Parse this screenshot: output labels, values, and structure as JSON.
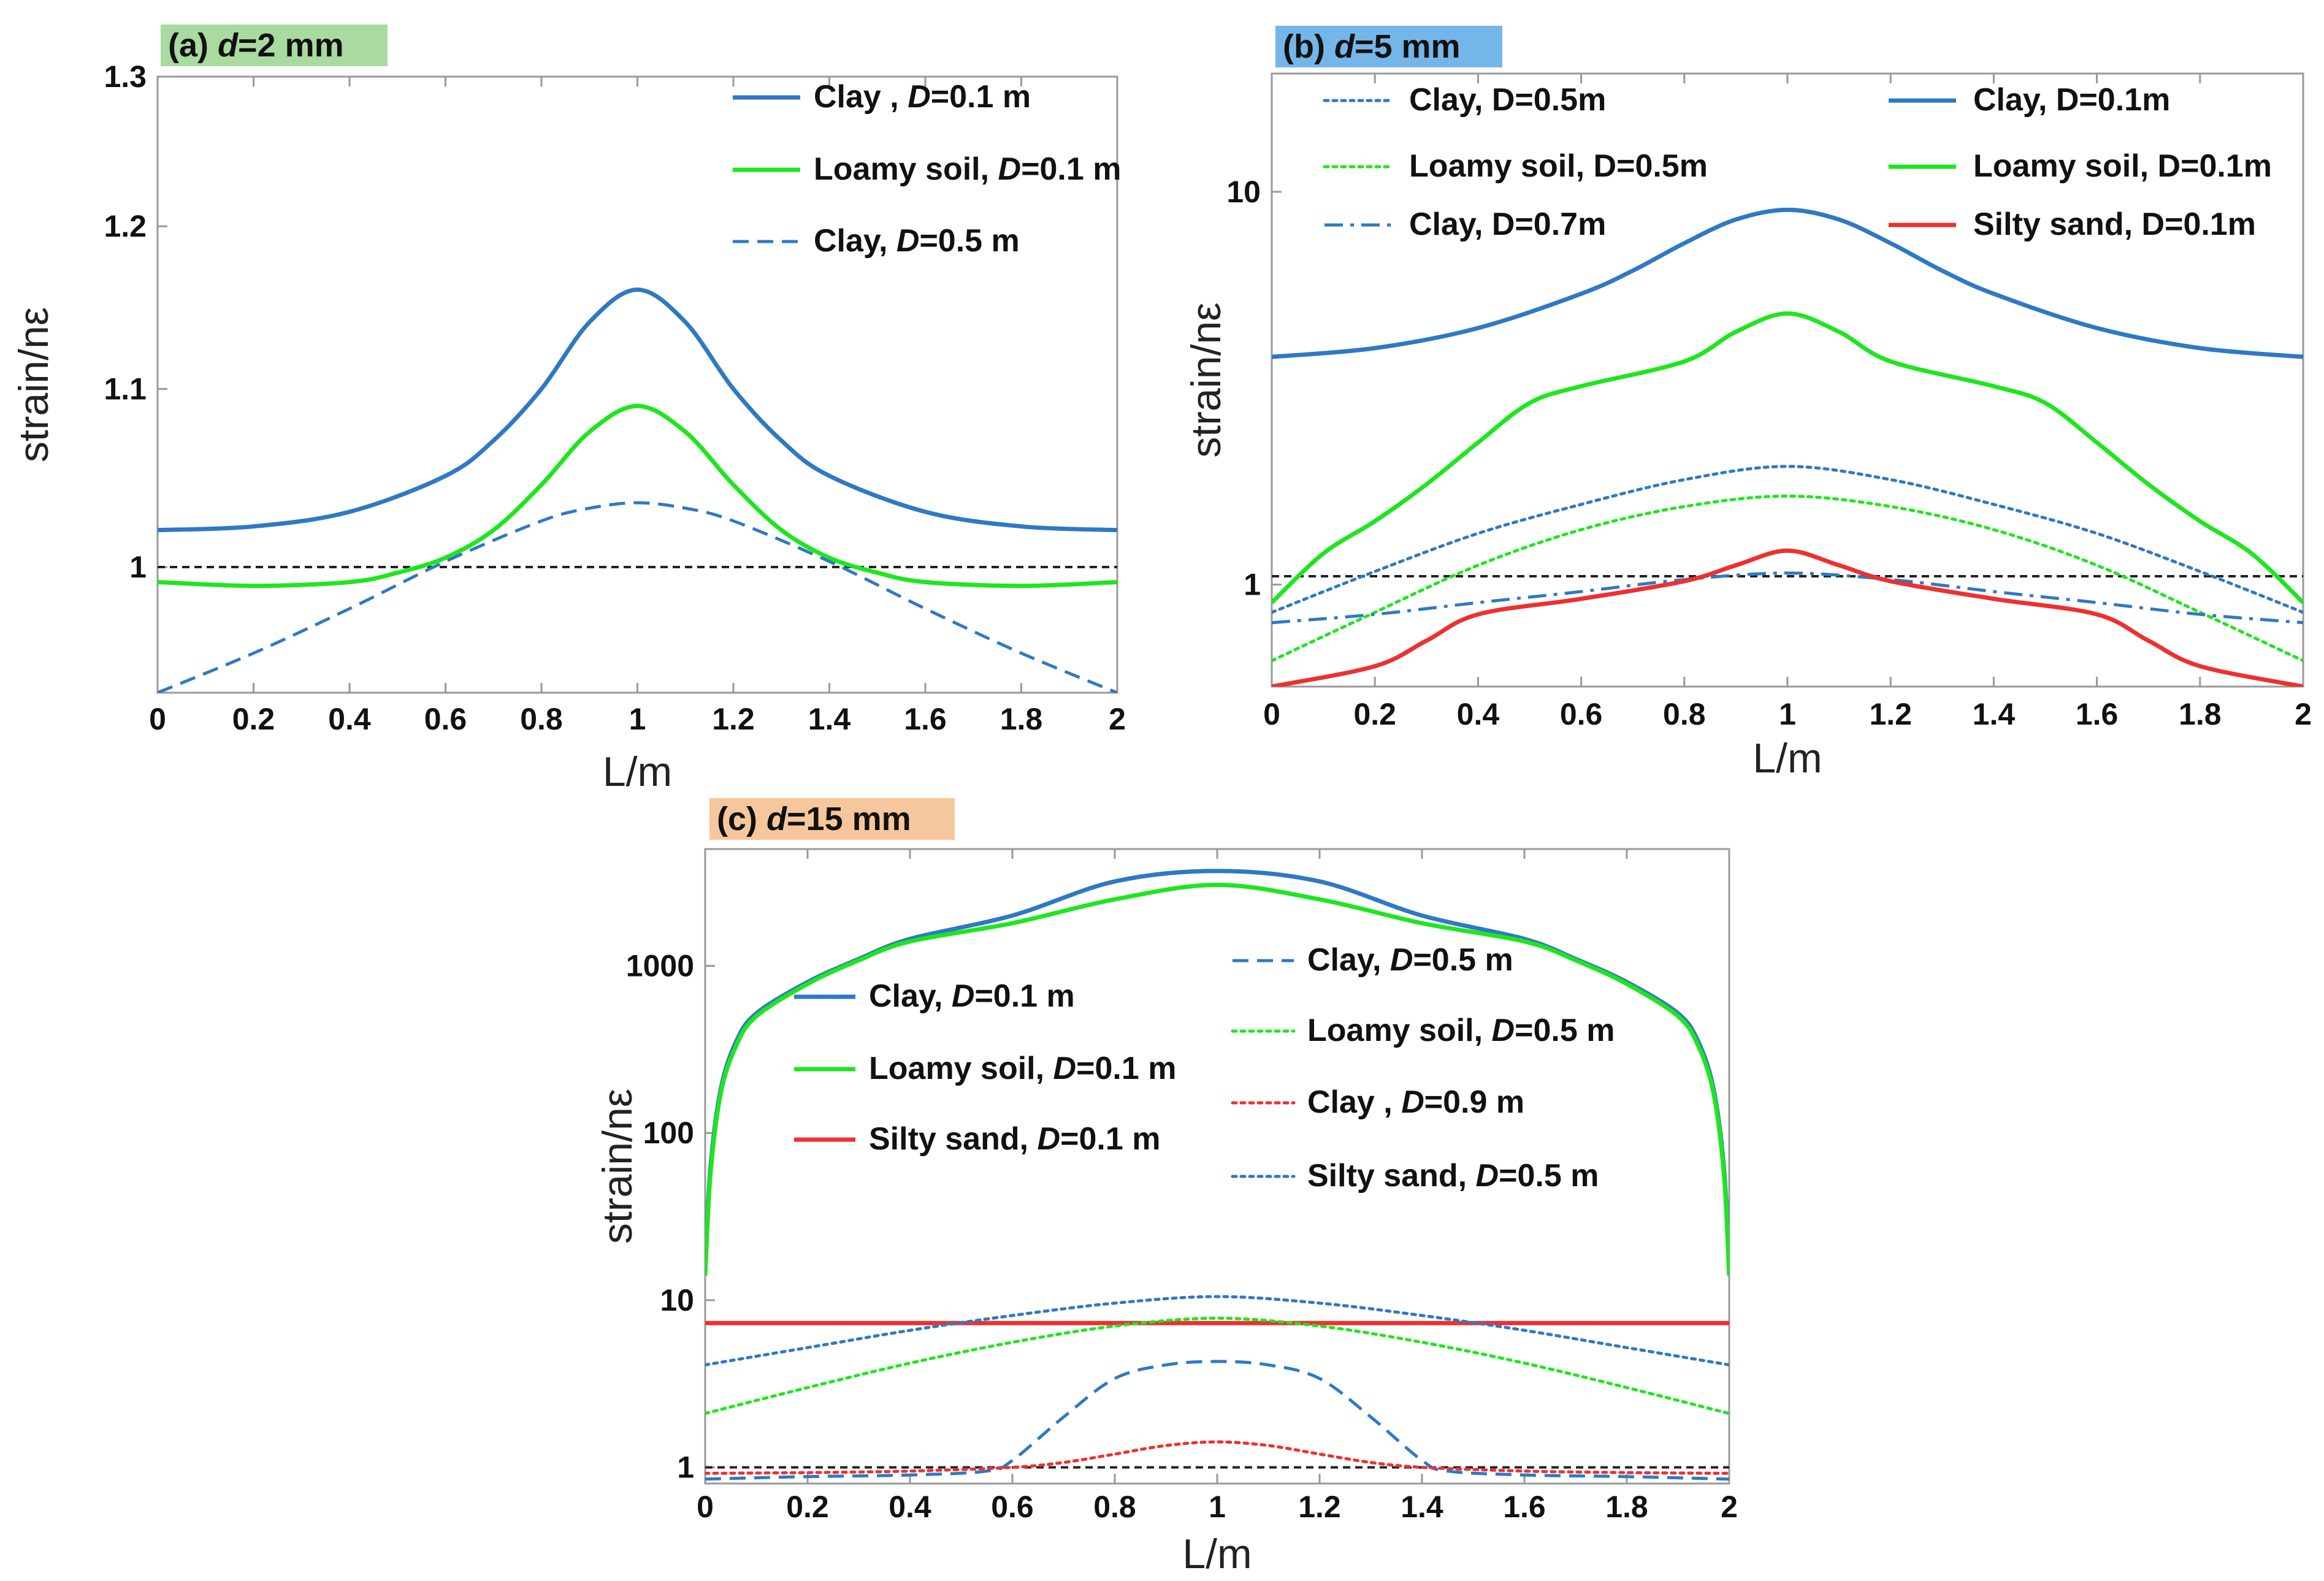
{
  "colors": {
    "clay": "#2f79c4",
    "loamy": "#1ee61e",
    "silty": "#ee3030",
    "reference": "#222222",
    "tag_a": "#a9dba0",
    "tag_b": "#75b6e8",
    "tag_c": "#f6c79c"
  },
  "chart_data": [
    {
      "panel": "a",
      "type": "line",
      "title_prefix": "(a) ",
      "title_var": "d",
      "title_rest": "=2 mm",
      "xlabel": "L/m",
      "ylabel": "strain/nε",
      "yscale": "log",
      "xlim": [
        0,
        2
      ],
      "ylim": [
        0.935,
        1.3
      ],
      "xticks": [
        0,
        0.2,
        0.4,
        0.6,
        0.8,
        1,
        1.2,
        1.4,
        1.6,
        1.8,
        2
      ],
      "xtick_labels": [
        "0",
        "0.2",
        "0.4",
        "0.6",
        "0.8",
        "1",
        "1.2",
        "1.4",
        "1.6",
        "1.8",
        "2"
      ],
      "yticks": [
        1,
        1.1,
        1.2,
        1.3
      ],
      "ytick_labels": [
        "1",
        "1.1",
        "1.2",
        "1.3"
      ],
      "reference_line": 1,
      "series": [
        {
          "name": "Clay , D=0.1 m",
          "pre": "Clay , ",
          "var": "D",
          "post": "=0.1 m",
          "color": "clay",
          "dash": "solid",
          "x": [
            0,
            0.2,
            0.4,
            0.6,
            0.7,
            0.8,
            0.9,
            1.0,
            1.1,
            1.2,
            1.3,
            1.4,
            1.6,
            1.8,
            2.0
          ],
          "y": [
            1.02,
            1.022,
            1.03,
            1.05,
            1.07,
            1.1,
            1.14,
            1.16,
            1.14,
            1.1,
            1.07,
            1.05,
            1.03,
            1.022,
            1.02
          ]
        },
        {
          "name": "Loamy soil, D=0.1 m",
          "pre": "Loamy soil, ",
          "var": "D",
          "post": "=0.1 m",
          "color": "loamy",
          "dash": "solid",
          "x": [
            0,
            0.2,
            0.4,
            0.5,
            0.6,
            0.7,
            0.8,
            0.9,
            1.0,
            1.1,
            1.2,
            1.3,
            1.4,
            1.5,
            1.6,
            1.8,
            2.0
          ],
          "y": [
            0.992,
            0.99,
            0.992,
            0.997,
            1.005,
            1.02,
            1.045,
            1.075,
            1.09,
            1.075,
            1.045,
            1.02,
            1.005,
            0.997,
            0.992,
            0.99,
            0.992
          ]
        },
        {
          "name": "Clay, D=0.5 m",
          "pre": "Clay, ",
          "var": "D",
          "post": "=0.5 m",
          "color": "clay",
          "dash": "dashed",
          "x": [
            0,
            0.2,
            0.4,
            0.6,
            0.8,
            0.9,
            1.0,
            1.1,
            1.2,
            1.4,
            1.6,
            1.8,
            2.0
          ],
          "y": [
            0.935,
            0.955,
            0.978,
            1.003,
            1.025,
            1.032,
            1.035,
            1.032,
            1.025,
            1.003,
            0.978,
            0.955,
            0.935
          ]
        }
      ]
    },
    {
      "panel": "b",
      "type": "line",
      "title_prefix": "(b) ",
      "title_var": "d",
      "title_rest": "=5 mm",
      "xlabel": "L/m",
      "ylabel": "strain/nε",
      "yscale": "log",
      "xlim": [
        0,
        2
      ],
      "ylim": [
        0.55,
        20
      ],
      "xticks": [
        0,
        0.2,
        0.4,
        0.6,
        0.8,
        1,
        1.2,
        1.4,
        1.6,
        1.8,
        2
      ],
      "xtick_labels": [
        "0",
        "0.2",
        "0.4",
        "0.6",
        "0.8",
        "1",
        "1.2",
        "1.4",
        "1.6",
        "1.8",
        "2"
      ],
      "yticks": [
        1,
        10
      ],
      "ytick_labels": [
        "1",
        "10"
      ],
      "reference_line": 1.05,
      "series": [
        {
          "name": "Clay, D=0.5m",
          "pre": "Clay, D=0.5m",
          "var": "",
          "post": "",
          "color": "clay",
          "dash": "dotted",
          "x": [
            0,
            0.2,
            0.4,
            0.6,
            0.8,
            1.0,
            1.2,
            1.4,
            1.6,
            1.8,
            2.0
          ],
          "y": [
            0.85,
            1.08,
            1.35,
            1.6,
            1.85,
            2.0,
            1.85,
            1.6,
            1.35,
            1.08,
            0.85
          ]
        },
        {
          "name": "Loamy soil, D=0.5m",
          "pre": "Loamy soil, D=0.5m",
          "var": "",
          "post": "",
          "color": "loamy",
          "dash": "dotted",
          "x": [
            0,
            0.2,
            0.4,
            0.6,
            0.8,
            1.0,
            1.2,
            1.4,
            1.6,
            1.8,
            2.0
          ],
          "y": [
            0.64,
            0.85,
            1.12,
            1.38,
            1.58,
            1.68,
            1.58,
            1.38,
            1.12,
            0.85,
            0.64
          ]
        },
        {
          "name": "Clay, D=0.7m",
          "pre": "Clay, D=0.7m",
          "var": "",
          "post": "",
          "color": "clay",
          "dash": "dashdot",
          "x": [
            0,
            0.2,
            0.4,
            0.6,
            0.8,
            1.0,
            1.2,
            1.4,
            1.6,
            1.8,
            2.0
          ],
          "y": [
            0.8,
            0.84,
            0.9,
            0.96,
            1.03,
            1.07,
            1.03,
            0.96,
            0.9,
            0.84,
            0.8
          ]
        },
        {
          "name": "Clay, D=0.1m",
          "pre": "Clay, D=0.1m",
          "var": "",
          "post": "",
          "color": "clay",
          "dash": "solid",
          "x": [
            0,
            0.2,
            0.4,
            0.6,
            0.7,
            0.8,
            0.9,
            1.0,
            1.1,
            1.2,
            1.3,
            1.4,
            1.6,
            1.8,
            2.0
          ],
          "y": [
            3.8,
            4.0,
            4.5,
            5.5,
            6.3,
            7.4,
            8.5,
            9.0,
            8.5,
            7.4,
            6.3,
            5.5,
            4.5,
            4.0,
            3.8
          ]
        },
        {
          "name": "Loamy soil, D=0.1m",
          "pre": "Loamy soil, D=0.1m",
          "var": "",
          "post": "",
          "color": "loamy",
          "dash": "solid",
          "x": [
            0,
            0.1,
            0.2,
            0.3,
            0.4,
            0.5,
            0.6,
            0.8,
            0.9,
            1.0,
            1.1,
            1.2,
            1.4,
            1.5,
            1.6,
            1.7,
            1.8,
            1.9,
            2.0
          ],
          "y": [
            0.9,
            1.2,
            1.45,
            1.8,
            2.3,
            2.9,
            3.2,
            3.7,
            4.4,
            4.9,
            4.4,
            3.7,
            3.2,
            2.9,
            2.3,
            1.8,
            1.45,
            1.2,
            0.9
          ]
        },
        {
          "name": "Silty sand, D=0.1m",
          "pre": "Silty sand, D=0.1m",
          "var": "",
          "post": "",
          "color": "silty",
          "dash": "solid",
          "x": [
            0,
            0.2,
            0.3,
            0.4,
            0.6,
            0.8,
            0.9,
            1.0,
            1.1,
            1.2,
            1.4,
            1.6,
            1.7,
            1.8,
            2.0
          ],
          "y": [
            0.55,
            0.62,
            0.72,
            0.84,
            0.92,
            1.02,
            1.12,
            1.22,
            1.12,
            1.02,
            0.92,
            0.84,
            0.72,
            0.62,
            0.55
          ]
        }
      ]
    },
    {
      "panel": "c",
      "type": "line",
      "title_prefix": "(c) ",
      "title_var": "d",
      "title_rest": "=15 mm",
      "xlabel": "L/m",
      "ylabel": "strain/nε",
      "yscale": "log",
      "xlim": [
        0,
        2
      ],
      "ylim": [
        0.8,
        5000
      ],
      "xticks": [
        0,
        0.2,
        0.4,
        0.6,
        0.8,
        1,
        1.2,
        1.4,
        1.6,
        1.8,
        2
      ],
      "xtick_labels": [
        "0",
        "0.2",
        "0.4",
        "0.6",
        "0.8",
        "1",
        "1.2",
        "1.4",
        "1.6",
        "1.8",
        "2"
      ],
      "yticks": [
        1,
        10,
        100,
        1000
      ],
      "ytick_labels": [
        "1",
        "10",
        "100",
        "1000"
      ],
      "reference_line": 1,
      "series": [
        {
          "name": "Clay, D=0.1 m",
          "pre": "Clay, ",
          "var": "D",
          "post": "=0.1 m",
          "color": "clay",
          "dash": "solid",
          "x": [
            0,
            0.01,
            0.03,
            0.06,
            0.1,
            0.2,
            0.3,
            0.4,
            0.6,
            0.8,
            1.0,
            1.2,
            1.4,
            1.6,
            1.7,
            1.8,
            1.9,
            1.94,
            1.97,
            1.99,
            2.0
          ],
          "y": [
            15,
            60,
            180,
            350,
            520,
            800,
            1100,
            1450,
            2000,
            3200,
            3700,
            3200,
            2000,
            1450,
            1100,
            800,
            520,
            350,
            180,
            60,
            15
          ]
        },
        {
          "name": "Loamy soil, D=0.1 m",
          "pre": "Loamy soil, ",
          "var": "D",
          "post": "=0.1 m",
          "color": "loamy",
          "dash": "solid",
          "x": [
            0,
            0.01,
            0.03,
            0.06,
            0.1,
            0.2,
            0.3,
            0.4,
            0.6,
            0.8,
            1.0,
            1.2,
            1.4,
            1.6,
            1.7,
            1.8,
            1.9,
            1.94,
            1.97,
            1.99,
            2.0
          ],
          "y": [
            14,
            55,
            170,
            330,
            500,
            780,
            1080,
            1400,
            1800,
            2500,
            3050,
            2500,
            1800,
            1400,
            1080,
            780,
            500,
            330,
            170,
            55,
            14
          ]
        },
        {
          "name": "Silty sand, D=0.1 m",
          "pre": "Silty sand, ",
          "var": "D",
          "post": "=0.1 m",
          "color": "silty",
          "dash": "solid",
          "x": [
            0,
            2.0
          ],
          "y": [
            7.3,
            7.3
          ]
        },
        {
          "name": "Clay, D=0.5 m",
          "pre": "Clay, ",
          "var": "D",
          "post": "=0.5 m",
          "color": "clay",
          "dash": "dashed",
          "x": [
            0,
            0.2,
            0.4,
            0.55,
            0.6,
            0.7,
            0.8,
            0.9,
            1.0,
            1.1,
            1.2,
            1.3,
            1.4,
            1.45,
            1.6,
            1.8,
            2.0
          ],
          "y": [
            0.85,
            0.88,
            0.9,
            0.95,
            1.1,
            2.0,
            3.4,
            4.1,
            4.3,
            4.1,
            3.4,
            2.0,
            1.1,
            0.95,
            0.9,
            0.88,
            0.85
          ]
        },
        {
          "name": "Loamy soil, D=0.5 m",
          "pre": "Loamy soil, ",
          "var": "D",
          "post": "=0.5 m",
          "color": "loamy",
          "dash": "dotted",
          "x": [
            0,
            0.2,
            0.4,
            0.6,
            0.8,
            1.0,
            1.2,
            1.4,
            1.6,
            1.8,
            2.0
          ],
          "y": [
            2.1,
            3.0,
            4.2,
            5.6,
            7.0,
            7.8,
            7.0,
            5.6,
            4.2,
            3.0,
            2.1
          ]
        },
        {
          "name": "Clay , D=0.9 m",
          "pre": "Clay , ",
          "var": "D",
          "post": "=0.9 m",
          "color": "silty",
          "dash": "dotted",
          "x": [
            0,
            0.2,
            0.4,
            0.6,
            0.7,
            0.8,
            0.9,
            1.0,
            1.1,
            1.2,
            1.3,
            1.4,
            1.6,
            1.8,
            2.0
          ],
          "y": [
            0.92,
            0.93,
            0.95,
            1.0,
            1.07,
            1.2,
            1.35,
            1.42,
            1.35,
            1.2,
            1.07,
            1.0,
            0.95,
            0.93,
            0.92
          ]
        },
        {
          "name": "Silty sand, D=0.5 m",
          "pre": "Silty sand, ",
          "var": "D",
          "post": "=0.5 m",
          "color": "clay",
          "dash": "dotted",
          "x": [
            0,
            0.2,
            0.4,
            0.6,
            0.8,
            1.0,
            1.2,
            1.4,
            1.6,
            1.8,
            2.0
          ],
          "y": [
            4.1,
            5.2,
            6.6,
            8.1,
            9.6,
            10.5,
            9.6,
            8.1,
            6.6,
            5.2,
            4.1
          ]
        }
      ]
    }
  ]
}
